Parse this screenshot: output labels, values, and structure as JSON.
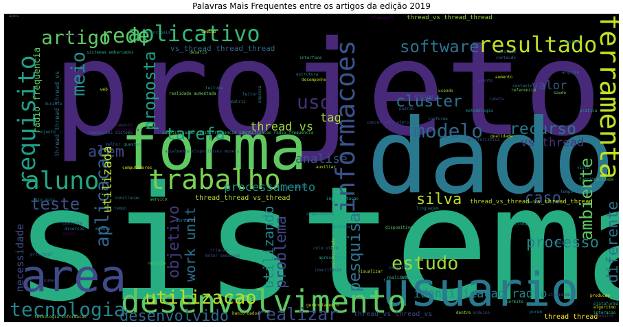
{
  "chart_data": {
    "type": "wordcloud",
    "title": "Palavras Mais Frequentes entre os artigos da edição 2019",
    "background": "#000000",
    "colormap": "viridis",
    "words": [
      {
        "text": "sistema",
        "weight": 100,
        "color": "#26ad81"
      },
      {
        "text": "projeto",
        "weight": 88,
        "color": "#482878"
      },
      {
        "text": "dado",
        "weight": 62,
        "color": "#2a788e"
      },
      {
        "text": "forma",
        "weight": 42,
        "color": "#5ec962"
      },
      {
        "text": "usuario",
        "weight": 40,
        "color": "#2a788e"
      },
      {
        "text": "area",
        "weight": 35,
        "color": "#3e4a89"
      },
      {
        "text": "desenvolvimento",
        "weight": 30,
        "color": "#5ec962"
      },
      {
        "text": "ferramenta",
        "weight": 30,
        "color": "#c2df23"
      },
      {
        "text": "informacoes",
        "weight": 27,
        "color": "#3b528b"
      },
      {
        "text": "trabalho",
        "weight": 27,
        "color": "#7ad151"
      },
      {
        "text": "requisito",
        "weight": 24,
        "color": "#1f9e89"
      },
      {
        "text": "aluno",
        "weight": 24,
        "color": "#22a884"
      },
      {
        "text": "aplicativo",
        "weight": 22,
        "color": "#35b779"
      },
      {
        "text": "modelo",
        "weight": 22,
        "color": "#31688e"
      },
      {
        "text": "rede",
        "weight": 20,
        "color": "#5ec962"
      },
      {
        "text": "resultado",
        "weight": 20,
        "color": "#bddf26"
      },
      {
        "text": "tecnologia",
        "weight": 20,
        "color": "#25858e"
      },
      {
        "text": "artigo",
        "weight": 18,
        "color": "#5ec962"
      },
      {
        "text": "software",
        "weight": 18,
        "color": "#2c728e"
      },
      {
        "text": "meio",
        "weight": 17,
        "color": "#21918c"
      },
      {
        "text": "uso",
        "weight": 17,
        "color": "#472d7b"
      },
      {
        "text": "aplicacao",
        "weight": 17,
        "color": "#33638d"
      },
      {
        "text": "ambiente",
        "weight": 17,
        "color": "#5ec962"
      },
      {
        "text": "estudo",
        "weight": 17,
        "color": "#9fda3a"
      },
      {
        "text": "utilizacao",
        "weight": 17,
        "color": "#b5de2b"
      },
      {
        "text": "desenvolvido",
        "weight": 16,
        "color": "#31688e"
      },
      {
        "text": "realizar",
        "weight": 16,
        "color": "#3e4a89"
      },
      {
        "text": "cluster",
        "weight": 15,
        "color": "#2c728e"
      },
      {
        "text": "tarefa",
        "weight": 15,
        "color": "#1fa187"
      },
      {
        "text": "recurso",
        "weight": 15,
        "color": "#2a788e"
      },
      {
        "text": "teste",
        "weight": 15,
        "color": "#3b528b"
      },
      {
        "text": "pesquisa",
        "weight": 15,
        "color": "#2c728e"
      },
      {
        "text": "proposta",
        "weight": 14,
        "color": "#1f9e89"
      },
      {
        "text": "objetivo",
        "weight": 14,
        "color": "#443a83"
      },
      {
        "text": "processo",
        "weight": 14,
        "color": "#26828e"
      },
      {
        "text": "problema",
        "weight": 14,
        "color": "#404688"
      },
      {
        "text": "utilizando",
        "weight": 14,
        "color": "#25858e"
      },
      {
        "text": "diferente",
        "weight": 14,
        "color": "#2c728e"
      },
      {
        "text": "silva",
        "weight": 14,
        "color": "#bddf26"
      },
      {
        "text": "caso",
        "weight": 14,
        "color": "#3b528b"
      },
      {
        "text": "alem",
        "weight": 13,
        "color": "#3e4a89"
      },
      {
        "text": "utilizada",
        "weight": 13,
        "color": "#bddf26"
      },
      {
        "text": "processamento",
        "weight": 12,
        "color": "#21918c"
      },
      {
        "text": "work unit",
        "weight": 12,
        "color": "#2c728e"
      },
      {
        "text": "analise",
        "weight": 11,
        "color": "#3b528b"
      },
      {
        "text": "tag",
        "weight": 11,
        "color": "#aadc32"
      },
      {
        "text": "thread vs",
        "weight": 10,
        "color": "#a0da39"
      },
      {
        "text": "vs thread",
        "weight": 10,
        "color": "#46337e"
      },
      {
        "text": "valor",
        "weight": 10,
        "color": "#3b528b"
      },
      {
        "text": "identificacao radio",
        "weight": 10,
        "color": "#26828e"
      },
      {
        "text": "necessidade",
        "weight": 9,
        "color": "#3e4a89"
      },
      {
        "text": "radio frequencia",
        "weight": 8,
        "color": "#5ec962"
      },
      {
        "text": "vs_thread thread_thread",
        "weight": 7,
        "color": "#31688e"
      },
      {
        "text": "thread_thread vs_thread",
        "weight": 6,
        "color": "#b5de2b"
      },
      {
        "text": "thread_vs thread_thread",
        "weight": 6,
        "color": "#9fda3a"
      },
      {
        "text": "thread_vs_thread vs_thread_thread",
        "weight": 5,
        "color": "#bddf26"
      },
      {
        "text": "thread_vs thread_vs",
        "weight": 5,
        "color": "#3e4a89"
      },
      {
        "text": "thread_thread thread_vs",
        "weight": 5,
        "color": "#2c728e"
      },
      {
        "text": "thread thread",
        "weight": 6,
        "color": "#fde725"
      },
      {
        "text": "interface",
        "weight": 3,
        "color": "#35b779"
      },
      {
        "text": "sistemas embarcados",
        "weight": 3,
        "color": "#22a884"
      },
      {
        "text": "conteudo",
        "weight": 3,
        "color": "#31688e"
      },
      {
        "text": "identificacao_radio_frequencia identificacao_radio_frequencia",
        "weight": 3,
        "color": "#35b779"
      },
      {
        "text": "dispositivo",
        "weight": 3,
        "color": "#5ec962"
      },
      {
        "text": "tecnologia informacao",
        "weight": 3,
        "color": "#7ad151"
      },
      {
        "text": "banco dados",
        "weight": 3,
        "color": "#c2df23"
      },
      {
        "text": "big data",
        "weight": 3,
        "color": "#2a788e"
      },
      {
        "text": "realidade aumentada",
        "weight": 3,
        "color": "#6ece58"
      },
      {
        "text": "requisitos sistema",
        "weight": 3,
        "color": "#31688e"
      },
      {
        "text": "computadores",
        "weight": 3,
        "color": "#d8e219"
      },
      {
        "text": "monitoramento",
        "weight": 3,
        "color": "#46337e"
      },
      {
        "text": "conjunto",
        "weight": 3,
        "color": "#21918c"
      },
      {
        "text": "cadastro",
        "weight": 3,
        "color": "#2c728e"
      },
      {
        "text": "apresentada",
        "weight": 3,
        "color": "#1f9e89"
      },
      {
        "text": "arduino",
        "weight": 3,
        "color": "#3b528b"
      },
      {
        "text": "dentre",
        "weight": 3,
        "color": "#9fda3a"
      },
      {
        "text": "plataforma",
        "weight": 3,
        "color": "#1f9e89"
      },
      {
        "text": "algoritmo",
        "weight": 3,
        "color": "#d8e219"
      },
      {
        "text": "maquina",
        "weight": 3,
        "color": "#46337e"
      },
      {
        "text": "interacao",
        "weight": 3,
        "color": "#35b779"
      },
      {
        "text": "producao",
        "weight": 3,
        "color": "#fde725"
      },
      {
        "text": "ponto",
        "weight": 3,
        "color": "#440154"
      },
      {
        "text": "servico",
        "weight": 3,
        "color": "#5ec962"
      },
      {
        "text": "construcao",
        "weight": 3,
        "color": "#2a788e"
      },
      {
        "text": "implementacao",
        "weight": 3,
        "color": "#22a884"
      },
      {
        "text": "linguagem",
        "weight": 3,
        "color": "#2c728e"
      },
      {
        "text": "gerenciamento",
        "weight": 3,
        "color": "#c2df23"
      },
      {
        "text": "universidade",
        "weight": 3,
        "color": "#8fd744"
      },
      {
        "text": "professor",
        "weight": 3,
        "color": "#1f9e89"
      },
      {
        "text": "controle",
        "weight": 3,
        "color": "#3e4a89"
      },
      {
        "text": "diversas",
        "weight": 3,
        "color": "#2c728e"
      },
      {
        "text": "modulo",
        "weight": 3,
        "color": "#25858e"
      },
      {
        "text": "noticia",
        "weight": 3,
        "color": "#5ec962"
      },
      {
        "text": "colo utero",
        "weight": 3,
        "color": "#31688e"
      },
      {
        "text": "motor execucao",
        "weight": 3,
        "color": "#3b528b"
      },
      {
        "text": "tempo real",
        "weight": 3,
        "color": "#2c728e"
      },
      {
        "text": "metodologia",
        "weight": 3,
        "color": "#21918c"
      },
      {
        "text": "pratica",
        "weight": 3,
        "color": "#1f9e89"
      },
      {
        "text": "qualidade",
        "weight": 3,
        "color": "#c2df23"
      },
      {
        "text": "caracteristica",
        "weight": 3,
        "color": "#3b528b"
      },
      {
        "text": "funcionalidade",
        "weight": 3,
        "color": "#35b779"
      },
      {
        "text": "contexto",
        "weight": 3,
        "color": "#25858e"
      },
      {
        "text": "referencia",
        "weight": 3,
        "color": "#7ad151"
      },
      {
        "text": "tabela",
        "weight": 3,
        "color": "#3e4a89"
      },
      {
        "text": "saude",
        "weight": 3,
        "color": "#6ece58"
      },
      {
        "text": "arquivo",
        "weight": 3,
        "color": "#2a788e"
      },
      {
        "text": "evento",
        "weight": 3,
        "color": "#3e4a89"
      },
      {
        "text": "aumento",
        "weight": 3,
        "color": "#c2df23"
      },
      {
        "text": "usando",
        "weight": 3,
        "color": "#8fd744"
      },
      {
        "text": "utilizar",
        "weight": 3,
        "color": "#2c728e"
      },
      {
        "text": "empresa",
        "weight": 3,
        "color": "#26828e"
      },
      {
        "text": "estrutura",
        "weight": 3,
        "color": "#2a788e"
      },
      {
        "text": "desempenho",
        "weight": 3,
        "color": "#b5de2b"
      },
      {
        "text": "framework",
        "weight": 3,
        "color": "#440154"
      },
      {
        "text": "codigo",
        "weight": 3,
        "color": "#fde725"
      },
      {
        "text": "principais",
        "weight": 3,
        "color": "#2a788e"
      },
      {
        "text": "gestao",
        "weight": 3,
        "color": "#440154"
      },
      {
        "text": "durante",
        "weight": 3,
        "color": "#31688e"
      },
      {
        "text": "melhor",
        "weight": 3,
        "color": "#3b528b"
      },
      {
        "text": "questao",
        "weight": 3,
        "color": "#1f9e89"
      },
      {
        "text": "introducao",
        "weight": 3,
        "color": "#440154"
      },
      {
        "text": "matriz",
        "weight": 3,
        "color": "#2a788e"
      },
      {
        "text": "leitor",
        "weight": 3,
        "color": "#2c728e"
      },
      {
        "text": "leitura",
        "weight": 3,
        "color": "#25858e"
      },
      {
        "text": "desafio",
        "weight": 3,
        "color": "#6ece58"
      },
      {
        "text": "padrao",
        "weight": 3,
        "color": "#3e4a89"
      },
      {
        "text": "conforme",
        "weight": 3,
        "color": "#2c728e"
      },
      {
        "text": "cancer colo utero",
        "weight": 3,
        "color": "#3b528b"
      },
      {
        "text": "auxiliar",
        "weight": 3,
        "color": "#c2df23"
      },
      {
        "text": "primeira",
        "weight": 3,
        "color": "#2a788e"
      },
      {
        "text": "visualizar",
        "weight": 3,
        "color": "#c2df23"
      },
      {
        "text": "realizado",
        "weight": 3,
        "color": "#35b779"
      },
      {
        "text": "identificar",
        "weight": 3,
        "color": "#3b528b"
      },
      {
        "text": "permite",
        "weight": 3,
        "color": "#35b779"
      },
      {
        "text": "atividade",
        "weight": 3,
        "color": "#3e4a89"
      },
      {
        "text": "possuem",
        "weight": 3,
        "color": "#2c728e"
      },
      {
        "text": "apos",
        "weight": 3,
        "color": "#31688e"
      },
      {
        "text": "web",
        "weight": 3,
        "color": "#c2df23"
      },
      {
        "text": "linha",
        "weight": 3,
        "color": "#2a788e"
      },
      {
        "text": "devido",
        "weight": 3,
        "color": "#26828e"
      },
      {
        "text": "tempo",
        "weight": 3,
        "color": "#31688e"
      },
      {
        "text": "servidor",
        "weight": 3,
        "color": "#2a788e"
      },
      {
        "text": "produto",
        "weight": 3,
        "color": "#25858e"
      },
      {
        "text": "criacao",
        "weight": 3,
        "color": "#3b528b"
      },
      {
        "text": "principal",
        "weight": 3,
        "color": "#31688e"
      },
      {
        "text": "numero",
        "weight": 3,
        "color": "#3e4a89"
      },
      {
        "text": "fim",
        "weight": 3,
        "color": "#2a788e"
      },
      {
        "text": "porem",
        "weight": 3,
        "color": "#25858e"
      },
      {
        "text": "atualmente dispositivos moveis",
        "weight": 3,
        "color": "#3b528b"
      },
      {
        "text": "arquitetura",
        "weight": 3,
        "color": "#2c728e"
      },
      {
        "text": "system",
        "weight": 3,
        "color": "#26828e"
      },
      {
        "text": "vista",
        "weight": 3,
        "color": "#2a788e"
      }
    ]
  }
}
